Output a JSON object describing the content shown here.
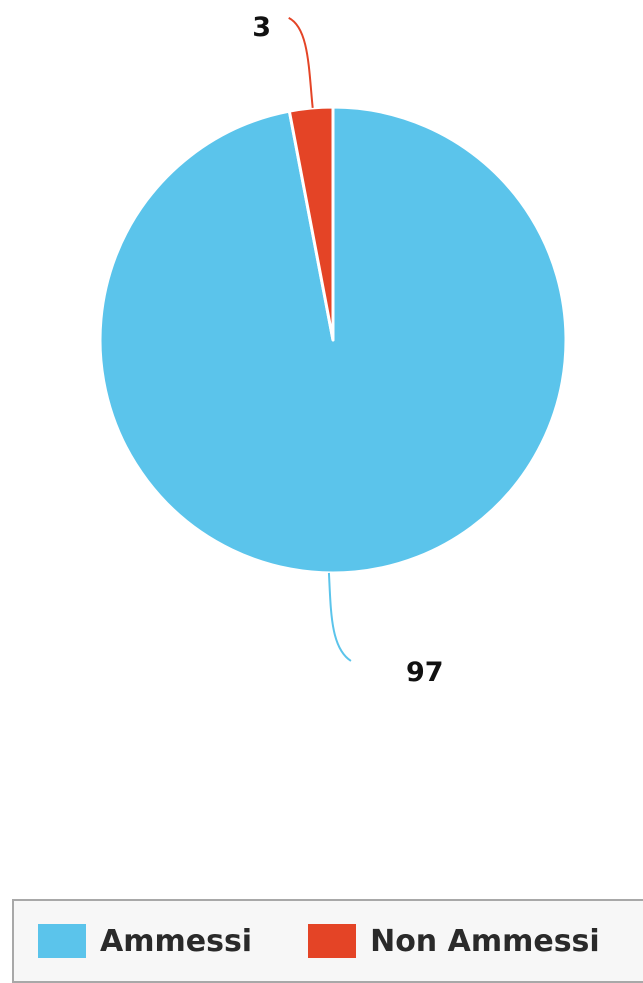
{
  "chart_data": {
    "type": "pie",
    "title": "",
    "categories": [
      "Ammessi",
      "Non Ammessi"
    ],
    "values": [
      97,
      3
    ],
    "data_labels": [
      "97",
      "3"
    ],
    "colors": [
      "#5BC4EB",
      "#E44426"
    ],
    "legend": {
      "placement": "bottom",
      "entries": [
        "Ammessi",
        "Non Ammessi"
      ]
    }
  }
}
